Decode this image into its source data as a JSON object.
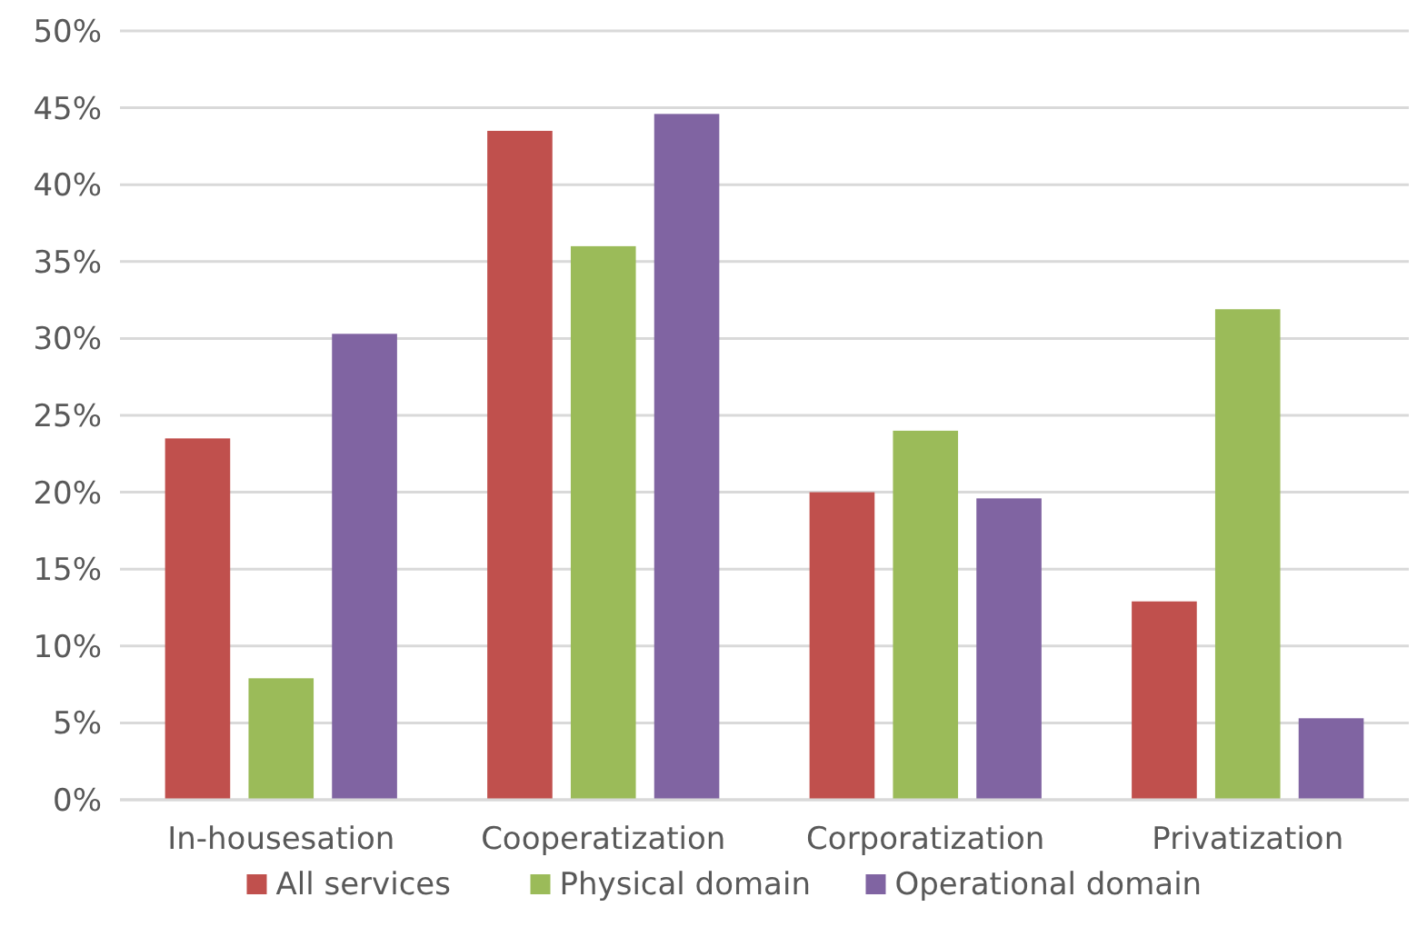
{
  "chart_data": {
    "type": "bar",
    "categories": [
      "In-housesation",
      "Cooperatization",
      "Corporatization",
      "Privatization"
    ],
    "series": [
      {
        "name": "All services",
        "color": "#c0504d",
        "values": [
          23.5,
          43.5,
          20.0,
          12.9
        ]
      },
      {
        "name": "Physical domain",
        "color": "#9bbb59",
        "values": [
          7.9,
          36.0,
          24.0,
          31.9
        ]
      },
      {
        "name": "Operational domain",
        "color": "#8064a2",
        "values": [
          30.3,
          44.6,
          19.6,
          5.3
        ]
      }
    ],
    "ylim": [
      0,
      50
    ],
    "yticks": [
      {
        "value": 0,
        "label": "0%"
      },
      {
        "value": 5,
        "label": "5%"
      },
      {
        "value": 10,
        "label": "10%"
      },
      {
        "value": 15,
        "label": "15%"
      },
      {
        "value": 20,
        "label": "20%"
      },
      {
        "value": 25,
        "label": "25%"
      },
      {
        "value": 30,
        "label": "30%"
      },
      {
        "value": 35,
        "label": "35%"
      },
      {
        "value": 40,
        "label": "40%"
      },
      {
        "value": 45,
        "label": "45%"
      },
      {
        "value": 50,
        "label": "50%"
      }
    ],
    "grid": "y",
    "legend": "bottom"
  }
}
